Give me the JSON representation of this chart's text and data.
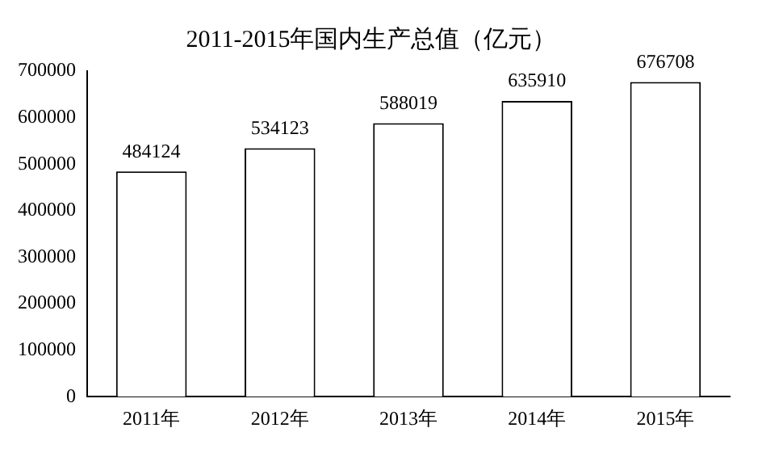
{
  "chart_data": {
    "type": "bar",
    "title": "2011-2015年国内生产总值（亿元）",
    "categories": [
      "2011年",
      "2012年",
      "2013年",
      "2014年",
      "2015年"
    ],
    "values": [
      484124,
      534123,
      588019,
      635910,
      676708
    ],
    "color": "#ffffff",
    "ylim": [
      0,
      700000
    ],
    "yticks": [
      0,
      100000,
      200000,
      300000,
      400000,
      500000,
      600000,
      700000
    ],
    "grid": false,
    "legend": false,
    "data_labels": true
  }
}
